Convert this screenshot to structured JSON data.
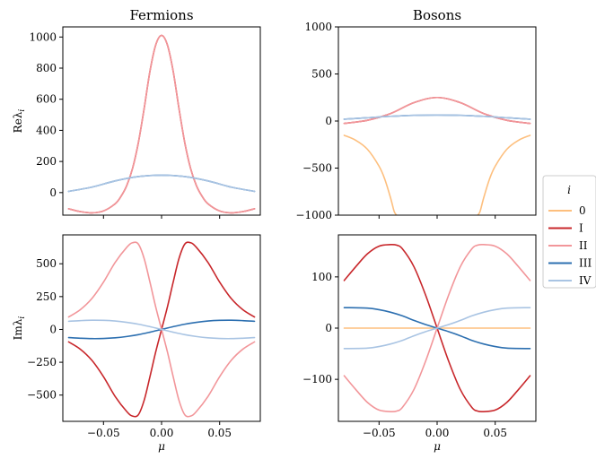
{
  "chart_data": [
    {
      "id": "fermions-re",
      "type": "line",
      "title": "Fermions",
      "ylabel": "Reλ",
      "ylabel_sub": "i",
      "xlabel": "",
      "xlim": [
        -0.085,
        0.085
      ],
      "ylim": [
        -145,
        1065
      ],
      "xticks": [
        -0.05,
        0.0,
        0.05
      ],
      "xtick_labels": [
        "",
        "",
        ""
      ],
      "yticks": [
        0,
        200,
        400,
        600,
        800,
        1000
      ],
      "ytick_labels": [
        "0",
        "200",
        "400",
        "600",
        "800",
        "1000"
      ],
      "series": [
        {
          "name": "I",
          "color": "#c8272b",
          "x": [
            -0.08,
            -0.07,
            -0.06,
            -0.05,
            -0.04,
            -0.035,
            -0.03,
            -0.025,
            -0.02,
            -0.015,
            -0.01,
            -0.005,
            0,
            0.005,
            0.01,
            0.015,
            0.02,
            0.025,
            0.03,
            0.035,
            0.04,
            0.05,
            0.06,
            0.07,
            0.08
          ],
          "values": [
            -104,
            -122,
            -130,
            -118,
            -72,
            -25,
            45,
            155,
            320,
            540,
            780,
            950,
            1010,
            950,
            780,
            540,
            320,
            155,
            45,
            -25,
            -72,
            -118,
            -130,
            -122,
            -104
          ]
        },
        {
          "name": "II",
          "color": "#f2969a",
          "x": [
            -0.08,
            -0.07,
            -0.06,
            -0.05,
            -0.04,
            -0.035,
            -0.03,
            -0.025,
            -0.02,
            -0.015,
            -0.01,
            -0.005,
            0,
            0.005,
            0.01,
            0.015,
            0.02,
            0.025,
            0.03,
            0.035,
            0.04,
            0.05,
            0.06,
            0.07,
            0.08
          ],
          "values": [
            -104,
            -122,
            -130,
            -118,
            -72,
            -25,
            45,
            155,
            320,
            540,
            780,
            950,
            1010,
            950,
            780,
            540,
            320,
            155,
            45,
            -25,
            -72,
            -118,
            -130,
            -122,
            -104
          ]
        },
        {
          "name": "III",
          "color": "#2c6fb0",
          "x": [
            -0.08,
            -0.06,
            -0.04,
            -0.02,
            0,
            0.02,
            0.04,
            0.06,
            0.08
          ],
          "values": [
            8,
            35,
            75,
            103,
            112,
            103,
            75,
            35,
            8
          ]
        },
        {
          "name": "IV",
          "color": "#a9c4e3",
          "x": [
            -0.08,
            -0.06,
            -0.04,
            -0.02,
            0,
            0.02,
            0.04,
            0.06,
            0.08
          ],
          "values": [
            8,
            35,
            75,
            103,
            112,
            103,
            75,
            35,
            8
          ]
        }
      ]
    },
    {
      "id": "bosons-re",
      "type": "line",
      "title": "Bosons",
      "ylabel": "",
      "xlabel": "",
      "xlim": [
        -0.085,
        0.085
      ],
      "ylim": [
        -1000,
        1000
      ],
      "xticks": [
        -0.05,
        0.0,
        0.05
      ],
      "xtick_labels": [
        "",
        "",
        ""
      ],
      "yticks": [
        -1000,
        -500,
        0,
        500,
        1000
      ],
      "ytick_labels": [
        "−1000",
        "−500",
        "0",
        "500",
        "1000"
      ],
      "series": [
        {
          "name": "0",
          "color": "#fdbf7e",
          "segments": [
            {
              "x": [
                -0.08,
                -0.07,
                -0.06,
                -0.05,
                -0.045,
                -0.04,
                -0.037,
                -0.035
              ],
              "values": [
                -152,
                -205,
                -300,
                -480,
                -620,
                -820,
                -960,
                -1000
              ]
            },
            {
              "x": [
                0.035,
                0.037,
                0.04,
                0.045,
                0.05,
                0.06,
                0.07,
                0.08
              ],
              "values": [
                -1000,
                -960,
                -820,
                -620,
                -480,
                -300,
                -205,
                -152
              ]
            }
          ]
        },
        {
          "name": "I",
          "color": "#c8272b",
          "x": [
            -0.08,
            -0.06,
            -0.04,
            -0.02,
            0,
            0.02,
            0.04,
            0.06,
            0.08
          ],
          "values": [
            -25,
            8,
            80,
            195,
            250,
            195,
            80,
            8,
            -25
          ]
        },
        {
          "name": "II",
          "color": "#f2969a",
          "x": [
            -0.08,
            -0.06,
            -0.04,
            -0.02,
            0,
            0.02,
            0.04,
            0.06,
            0.08
          ],
          "values": [
            -25,
            8,
            80,
            195,
            250,
            195,
            80,
            8,
            -25
          ]
        },
        {
          "name": "III",
          "color": "#2c6fb0",
          "x": [
            -0.08,
            -0.06,
            -0.04,
            -0.02,
            0,
            0.02,
            0.04,
            0.06,
            0.08
          ],
          "values": [
            20,
            35,
            50,
            60,
            63,
            60,
            50,
            35,
            20
          ]
        },
        {
          "name": "IV",
          "color": "#a9c4e3",
          "x": [
            -0.08,
            -0.06,
            -0.04,
            -0.02,
            0,
            0.02,
            0.04,
            0.06,
            0.08
          ],
          "values": [
            20,
            35,
            50,
            60,
            63,
            60,
            50,
            35,
            20
          ]
        }
      ]
    },
    {
      "id": "fermions-im",
      "type": "line",
      "title": "",
      "ylabel": "Imλ",
      "ylabel_sub": "i",
      "xlabel": "μ",
      "xlim": [
        -0.085,
        0.085
      ],
      "ylim": [
        -700,
        720
      ],
      "xticks": [
        -0.05,
        0.0,
        0.05
      ],
      "xtick_labels": [
        "−0.05",
        "0.00",
        "0.05"
      ],
      "yticks": [
        -500,
        -250,
        0,
        250,
        500
      ],
      "ytick_labels": [
        "−500",
        "−250",
        "0",
        "250",
        "500"
      ],
      "series": [
        {
          "name": "I",
          "color": "#c8272b",
          "x": [
            -0.08,
            -0.07,
            -0.06,
            -0.05,
            -0.04,
            -0.03,
            -0.025,
            -0.02,
            -0.015,
            -0.01,
            -0.005,
            0,
            0.005,
            0.01,
            0.015,
            0.02,
            0.025,
            0.03,
            0.04,
            0.05,
            0.06,
            0.07,
            0.08
          ],
          "values": [
            -95,
            -150,
            -235,
            -360,
            -510,
            -625,
            -660,
            -650,
            -540,
            -360,
            -170,
            0,
            170,
            360,
            540,
            650,
            660,
            625,
            510,
            360,
            235,
            150,
            95
          ]
        },
        {
          "name": "II",
          "color": "#f2969a",
          "x": [
            -0.08,
            -0.07,
            -0.06,
            -0.05,
            -0.04,
            -0.03,
            -0.025,
            -0.02,
            -0.015,
            -0.01,
            -0.005,
            0,
            0.005,
            0.01,
            0.015,
            0.02,
            0.025,
            0.03,
            0.04,
            0.05,
            0.06,
            0.07,
            0.08
          ],
          "values": [
            95,
            150,
            235,
            360,
            510,
            625,
            660,
            650,
            540,
            360,
            170,
            0,
            -170,
            -360,
            -540,
            -650,
            -660,
            -625,
            -510,
            -360,
            -235,
            -150,
            -95
          ]
        },
        {
          "name": "III",
          "color": "#2c6fb0",
          "x": [
            -0.08,
            -0.07,
            -0.06,
            -0.05,
            -0.04,
            -0.03,
            -0.02,
            -0.01,
            0,
            0.01,
            0.02,
            0.03,
            0.04,
            0.05,
            0.06,
            0.07,
            0.08
          ],
          "values": [
            -62,
            -67,
            -70,
            -69,
            -64,
            -54,
            -40,
            -21,
            0,
            21,
            40,
            54,
            64,
            69,
            70,
            67,
            62
          ]
        },
        {
          "name": "IV",
          "color": "#a9c4e3",
          "x": [
            -0.08,
            -0.07,
            -0.06,
            -0.05,
            -0.04,
            -0.03,
            -0.02,
            -0.01,
            0,
            0.01,
            0.02,
            0.03,
            0.04,
            0.05,
            0.06,
            0.07,
            0.08
          ],
          "values": [
            62,
            67,
            70,
            69,
            64,
            54,
            40,
            21,
            0,
            -21,
            -40,
            -54,
            -64,
            -69,
            -70,
            -67,
            -62
          ]
        }
      ]
    },
    {
      "id": "bosons-im",
      "type": "line",
      "title": "",
      "ylabel": "",
      "xlabel": "μ",
      "xlim": [
        -0.085,
        0.085
      ],
      "ylim": [
        -182,
        182
      ],
      "xticks": [
        -0.05,
        0.0,
        0.05
      ],
      "xtick_labels": [
        "−0.05",
        "0.00",
        "0.05"
      ],
      "yticks": [
        -100,
        0,
        100
      ],
      "ytick_labels": [
        "−100",
        "0",
        "100"
      ],
      "series": [
        {
          "name": "0",
          "color": "#fdbf7e",
          "x": [
            -0.08,
            0.08
          ],
          "values": [
            0,
            0
          ]
        },
        {
          "name": "I",
          "color": "#c8272b",
          "x": [
            -0.08,
            -0.07,
            -0.06,
            -0.05,
            -0.04,
            -0.035,
            -0.03,
            -0.02,
            -0.01,
            0,
            0.01,
            0.02,
            0.03,
            0.035,
            0.04,
            0.05,
            0.06,
            0.07,
            0.08
          ],
          "values": [
            93,
            120,
            145,
            160,
            163,
            162,
            155,
            120,
            65,
            0,
            -65,
            -120,
            -155,
            -162,
            -163,
            -160,
            -145,
            -120,
            -93
          ]
        },
        {
          "name": "II",
          "color": "#f2969a",
          "x": [
            -0.08,
            -0.07,
            -0.06,
            -0.05,
            -0.04,
            -0.035,
            -0.03,
            -0.02,
            -0.01,
            0,
            0.01,
            0.02,
            0.03,
            0.035,
            0.04,
            0.05,
            0.06,
            0.07,
            0.08
          ],
          "values": [
            -93,
            -120,
            -145,
            -160,
            -163,
            -162,
            -155,
            -120,
            -65,
            0,
            65,
            120,
            155,
            162,
            163,
            160,
            145,
            120,
            93
          ]
        },
        {
          "name": "III",
          "color": "#2c6fb0",
          "x": [
            -0.08,
            -0.06,
            -0.05,
            -0.04,
            -0.03,
            -0.02,
            -0.01,
            0,
            0.01,
            0.02,
            0.03,
            0.04,
            0.05,
            0.06,
            0.08
          ],
          "values": [
            40,
            39,
            36,
            31,
            24,
            15,
            7,
            0,
            -7,
            -15,
            -24,
            -31,
            -36,
            -39,
            -40
          ]
        },
        {
          "name": "IV",
          "color": "#a9c4e3",
          "x": [
            -0.08,
            -0.06,
            -0.05,
            -0.04,
            -0.03,
            -0.02,
            -0.01,
            0,
            0.01,
            0.02,
            0.03,
            0.04,
            0.05,
            0.06,
            0.08
          ],
          "values": [
            -40,
            -39,
            -36,
            -31,
            -24,
            -15,
            -7,
            0,
            7,
            15,
            24,
            31,
            36,
            39,
            40
          ]
        }
      ]
    }
  ],
  "legend": {
    "title": "i",
    "placement": "center-right",
    "entries": [
      {
        "label": "0",
        "color": "#fdbf7e"
      },
      {
        "label": "I",
        "color": "#c8272b"
      },
      {
        "label": "II",
        "color": "#f2969a"
      },
      {
        "label": "III",
        "color": "#2c6fb0"
      },
      {
        "label": "IV",
        "color": "#a9c4e3"
      }
    ]
  }
}
